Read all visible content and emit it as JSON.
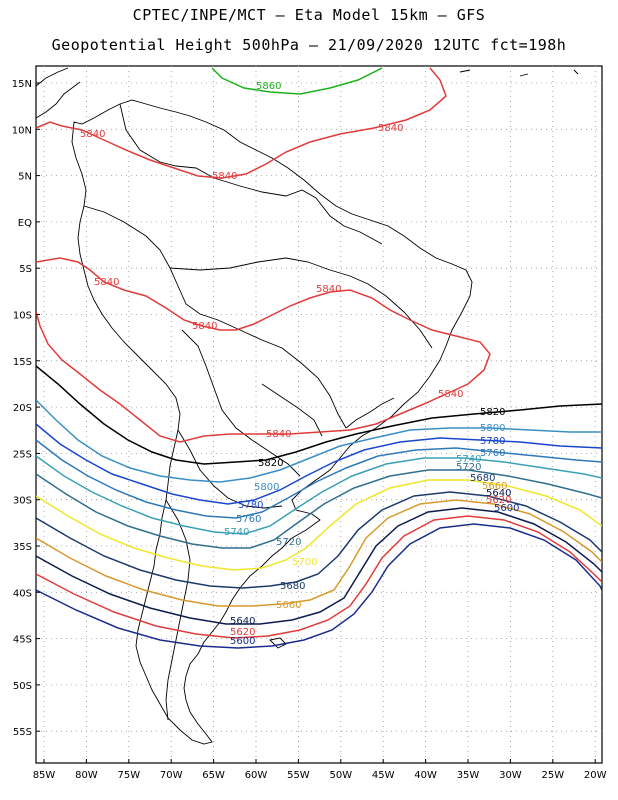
{
  "header": {
    "line1": "CPTEC/INPE/MCT –  Eta Model 15km – GFS",
    "line2": "Geopotential Height 500hPa – 21/09/2020 12UTC fct=198h"
  },
  "axes": {
    "lat_labels": [
      "15N",
      "10N",
      "5N",
      "EQ",
      "5S",
      "10S",
      "15S",
      "20S",
      "25S",
      "30S",
      "35S",
      "40S",
      "45S",
      "50S",
      "55S"
    ],
    "lon_labels": [
      "85W",
      "80W",
      "75W",
      "70W",
      "65W",
      "60W",
      "55W",
      "50W",
      "45W",
      "40W",
      "35W",
      "30W",
      "25W",
      "20W"
    ]
  },
  "contour_colors": {
    "5580": "#10206f",
    "5600": "#1a2d8c",
    "5620": "#e23b3b",
    "5640": "#0d1b4d",
    "5660": "#d89a2a",
    "5680": "#1b3a6b",
    "5700": "#f0e62a",
    "5720": "#2f6f8f",
    "5740": "#3aa0b5",
    "5760": "#2e79b8",
    "5780": "#1b46d0",
    "5800": "#3a8fc6",
    "5820": "#000000",
    "5840": "#e23b3b",
    "5860": "#1bb31b"
  },
  "contour_labels": [
    {
      "text": "5860",
      "level": "5860"
    },
    {
      "text": "5840",
      "level": "5840"
    },
    {
      "text": "5840",
      "level": "5840"
    },
    {
      "text": "5840",
      "level": "5840"
    },
    {
      "text": "5840",
      "level": "5840"
    },
    {
      "text": "5840",
      "level": "5840"
    },
    {
      "text": "5840",
      "level": "5840"
    },
    {
      "text": "5840",
      "level": "5840"
    },
    {
      "text": "5840",
      "level": "5840"
    },
    {
      "text": "5820",
      "level": "5820"
    },
    {
      "text": "5820",
      "level": "5820"
    },
    {
      "text": "5800",
      "level": "5800"
    },
    {
      "text": "5800",
      "level": "5800"
    },
    {
      "text": "5780",
      "level": "5780"
    },
    {
      "text": "5780",
      "level": "5780"
    },
    {
      "text": "5760",
      "level": "5760"
    },
    {
      "text": "5760",
      "level": "5760"
    },
    {
      "text": "5740",
      "level": "5740"
    },
    {
      "text": "5740",
      "level": "5740"
    },
    {
      "text": "5720",
      "level": "5720"
    },
    {
      "text": "5720",
      "level": "5720"
    },
    {
      "text": "5700",
      "level": "5700"
    },
    {
      "text": "5680",
      "level": "5680"
    },
    {
      "text": "5680",
      "level": "5680"
    },
    {
      "text": "5660",
      "level": "5660"
    },
    {
      "text": "5660",
      "level": "5660"
    },
    {
      "text": "5640",
      "level": "5640"
    },
    {
      "text": "5640",
      "level": "5640"
    },
    {
      "text": "5620",
      "level": "5620"
    },
    {
      "text": "5620",
      "level": "5620"
    },
    {
      "text": "5600",
      "level": "5600"
    },
    {
      "text": "5600",
      "level": "5600"
    }
  ]
}
